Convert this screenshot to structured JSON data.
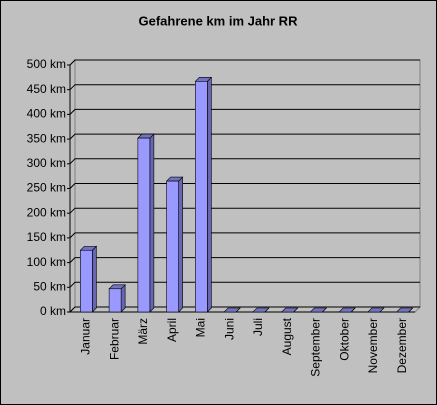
{
  "chart_data": {
    "type": "bar",
    "title": "Gefahrene km im Jahr RR",
    "categories": [
      "Januar",
      "Februar",
      "März",
      "April",
      "Mai",
      "Juni",
      "Juli",
      "August",
      "September",
      "Oktober",
      "November",
      "Dezember"
    ],
    "values": [
      125,
      47,
      352,
      265,
      467,
      0,
      0,
      0,
      0,
      0,
      0,
      0
    ],
    "color": "#9999ff",
    "ylim": [
      0,
      500
    ],
    "yticks": [
      {
        "value": 0,
        "label": "0 km"
      },
      {
        "value": 50,
        "label": "50 km"
      },
      {
        "value": 100,
        "label": "100 km"
      },
      {
        "value": 150,
        "label": "150 km"
      },
      {
        "value": 200,
        "label": "200 km"
      },
      {
        "value": 250,
        "label": "250 km"
      },
      {
        "value": 300,
        "label": "300 km"
      },
      {
        "value": 350,
        "label": "350 km"
      },
      {
        "value": 400,
        "label": "400 km"
      },
      {
        "value": 450,
        "label": "450 km"
      },
      {
        "value": 500,
        "label": "500 km"
      }
    ],
    "grid": true
  }
}
